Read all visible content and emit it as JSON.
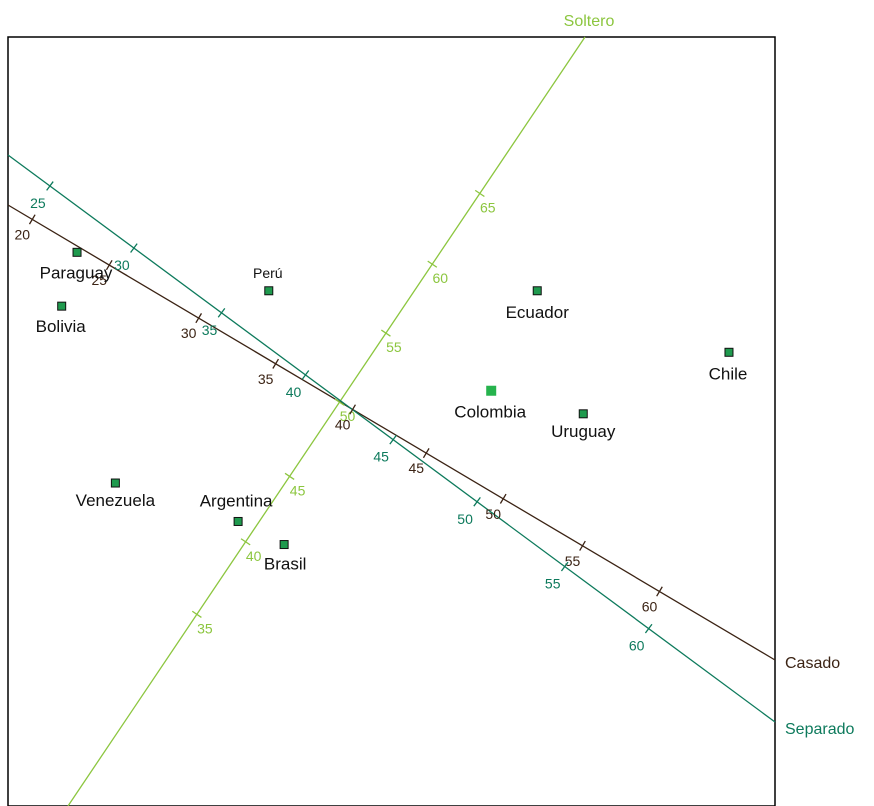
{
  "chart_data": {
    "type": "scatter",
    "title": "",
    "colors": {
      "point_fill": "#1f9a4e",
      "point_highlight": "#26b34d",
      "soltero": "#8cc63f",
      "casado": "#3b2314",
      "separado": "#0d7a5c",
      "frame": "#000000"
    },
    "points": [
      {
        "name": "Paraguay",
        "x": 0.09,
        "y": 0.28
      },
      {
        "name": "Bolivia",
        "x": 0.07,
        "y": 0.35
      },
      {
        "name": "Perú",
        "x": 0.34,
        "y": 0.33
      },
      {
        "name": "Ecuador",
        "x": 0.69,
        "y": 0.33
      },
      {
        "name": "Chile",
        "x": 0.94,
        "y": 0.41
      },
      {
        "name": "Colombia",
        "x": 0.63,
        "y": 0.46
      },
      {
        "name": "Uruguay",
        "x": 0.75,
        "y": 0.49
      },
      {
        "name": "Venezuela",
        "x": 0.14,
        "y": 0.58
      },
      {
        "name": "Argentina",
        "x": 0.3,
        "y": 0.63
      },
      {
        "name": "Brasil",
        "x": 0.36,
        "y": 0.66
      }
    ],
    "axes": [
      {
        "name": "Soltero",
        "ticks": [
          {
            "v": "35",
            "x": 0.26,
            "y": 0.76
          },
          {
            "v": "40",
            "x": 0.33,
            "y": 0.67
          },
          {
            "v": "45",
            "x": 0.38,
            "y": 0.58
          },
          {
            "v": "50",
            "x": 0.44,
            "y": 0.48
          },
          {
            "v": "55",
            "x": 0.5,
            "y": 0.39
          },
          {
            "v": "60",
            "x": 0.56,
            "y": 0.3
          },
          {
            "v": "65",
            "x": 0.61,
            "y": 0.2
          }
        ]
      },
      {
        "name": "Casado",
        "ticks": [
          {
            "v": "20",
            "x": 0.03,
            "y": 0.24
          },
          {
            "v": "25",
            "x": 0.13,
            "y": 0.3
          },
          {
            "v": "30",
            "x": 0.24,
            "y": 0.38
          },
          {
            "v": "35",
            "x": 0.34,
            "y": 0.44
          },
          {
            "v": "40",
            "x": 0.44,
            "y": 0.5
          },
          {
            "v": "45",
            "x": 0.54,
            "y": 0.55
          },
          {
            "v": "50",
            "x": 0.64,
            "y": 0.61
          },
          {
            "v": "55",
            "x": 0.75,
            "y": 0.66
          },
          {
            "v": "60",
            "x": 0.85,
            "y": 0.72
          }
        ]
      },
      {
        "name": "Separado",
        "ticks": [
          {
            "v": "25",
            "x": 0.05,
            "y": 0.2
          },
          {
            "v": "30",
            "x": 0.16,
            "y": 0.28
          },
          {
            "v": "35",
            "x": 0.27,
            "y": 0.37
          },
          {
            "v": "40",
            "x": 0.38,
            "y": 0.45
          },
          {
            "v": "45",
            "x": 0.49,
            "y": 0.54
          },
          {
            "v": "50",
            "x": 0.6,
            "y": 0.62
          },
          {
            "v": "55",
            "x": 0.71,
            "y": 0.71
          },
          {
            "v": "60",
            "x": 0.82,
            "y": 0.79
          }
        ]
      }
    ]
  }
}
